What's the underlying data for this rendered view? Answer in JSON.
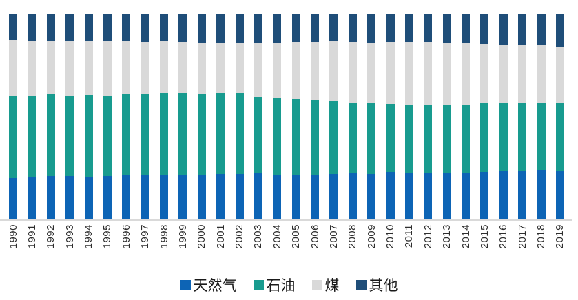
{
  "chart": {
    "background": "#ffffff",
    "axis_line_color": "#d9d9d9",
    "tick_label_color": "#2e2e2e",
    "legend_text_color": "#1a1a1a"
  },
  "chart_data": {
    "type": "bar",
    "stacked": true,
    "unit": "percent",
    "title": "",
    "xlabel": "",
    "ylabel": "",
    "ylim": [
      0,
      100
    ],
    "grid": false,
    "legend_position": "bottom",
    "x_tick_rotation": 90,
    "categories": [
      "1990",
      "1991",
      "1992",
      "1993",
      "1994",
      "1995",
      "1996",
      "1997",
      "1998",
      "1999",
      "2000",
      "2001",
      "2002",
      "2003",
      "2004",
      "2005",
      "2006",
      "2007",
      "2008",
      "2009",
      "2010",
      "2011",
      "2012",
      "2013",
      "2014",
      "2015",
      "2016",
      "2017",
      "2018",
      "2019"
    ],
    "series": [
      {
        "key": "gas",
        "name": "天然气",
        "color": "#0d64b5",
        "values": [
          20.1,
          20.6,
          20.8,
          20.8,
          20.5,
          20.8,
          21.5,
          21.1,
          21.5,
          21.1,
          21.5,
          21.8,
          21.8,
          22.1,
          21.5,
          21.5,
          21.5,
          21.8,
          22.1,
          21.8,
          22.8,
          22.5,
          22.5,
          22.5,
          22.1,
          22.8,
          23.5,
          23.2,
          23.8,
          23.5
        ]
      },
      {
        "key": "oil",
        "name": "石油",
        "color": "#189b8f",
        "values": [
          39.9,
          39.6,
          39.8,
          39.4,
          39.8,
          39.4,
          39.2,
          39.6,
          39.8,
          40.3,
          39.4,
          39.5,
          39.5,
          37.2,
          37.2,
          36.9,
          36.2,
          35.6,
          34.6,
          34.6,
          33.2,
          33.2,
          32.8,
          32.9,
          33.2,
          33.5,
          33.2,
          33.5,
          32.9,
          33.2
        ]
      },
      {
        "key": "coal",
        "name": "煤",
        "color": "#d9d9d9",
        "values": [
          27.2,
          26.8,
          26.4,
          26.7,
          26.3,
          26.4,
          26.2,
          25.6,
          25.3,
          24.8,
          25.0,
          24.6,
          24.3,
          26.5,
          27.2,
          28.0,
          28.5,
          29.2,
          29.5,
          29.5,
          30.2,
          30.5,
          30.9,
          30.5,
          30.2,
          28.9,
          28.2,
          27.9,
          27.9,
          27.2
        ]
      },
      {
        "key": "other",
        "name": "其他",
        "color": "#1f4e79",
        "values": [
          12.8,
          13.0,
          13.0,
          13.1,
          13.4,
          13.4,
          13.1,
          13.7,
          13.4,
          13.8,
          14.1,
          14.1,
          14.4,
          14.2,
          14.1,
          13.6,
          13.8,
          13.4,
          13.8,
          14.1,
          13.8,
          13.8,
          13.8,
          14.1,
          14.5,
          14.8,
          15.1,
          15.4,
          15.4,
          16.1
        ]
      }
    ]
  }
}
